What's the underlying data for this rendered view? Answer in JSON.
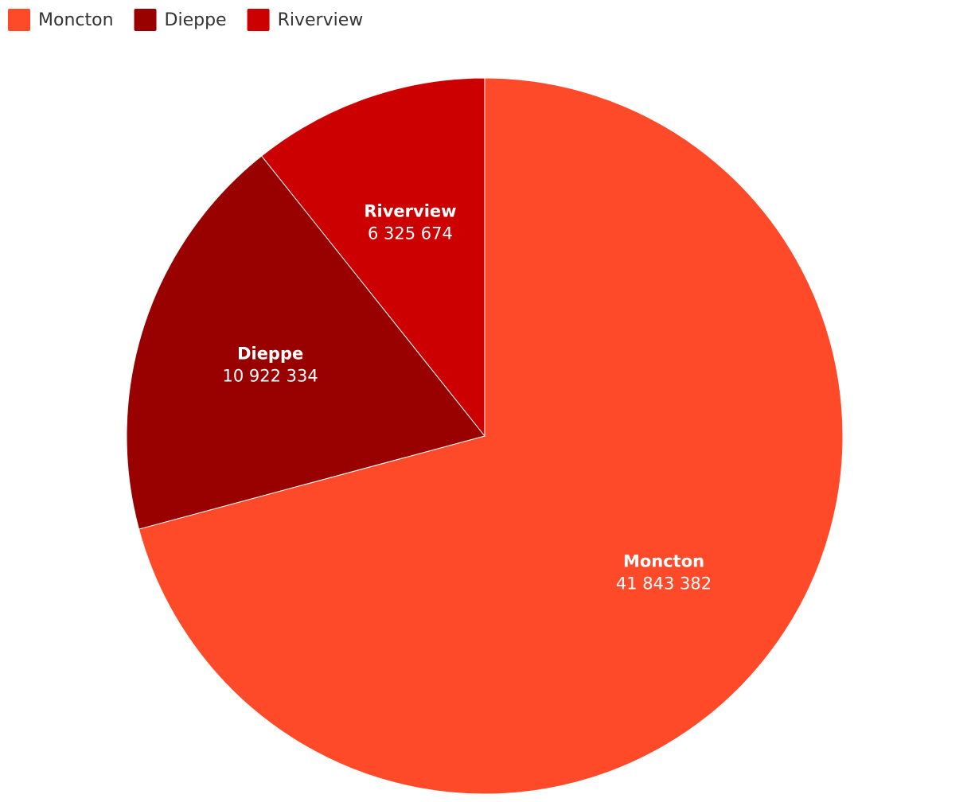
{
  "chart_data": {
    "type": "pie",
    "categories": [
      "Moncton",
      "Dieppe",
      "Riverview"
    ],
    "values": [
      41843382,
      10922334,
      6325674
    ],
    "value_labels": [
      "41 843 382",
      "10 922 334",
      "6 325 674"
    ],
    "colors": [
      "#ff4a2a",
      "#990000",
      "#cc0000"
    ],
    "legend": "top-left"
  }
}
